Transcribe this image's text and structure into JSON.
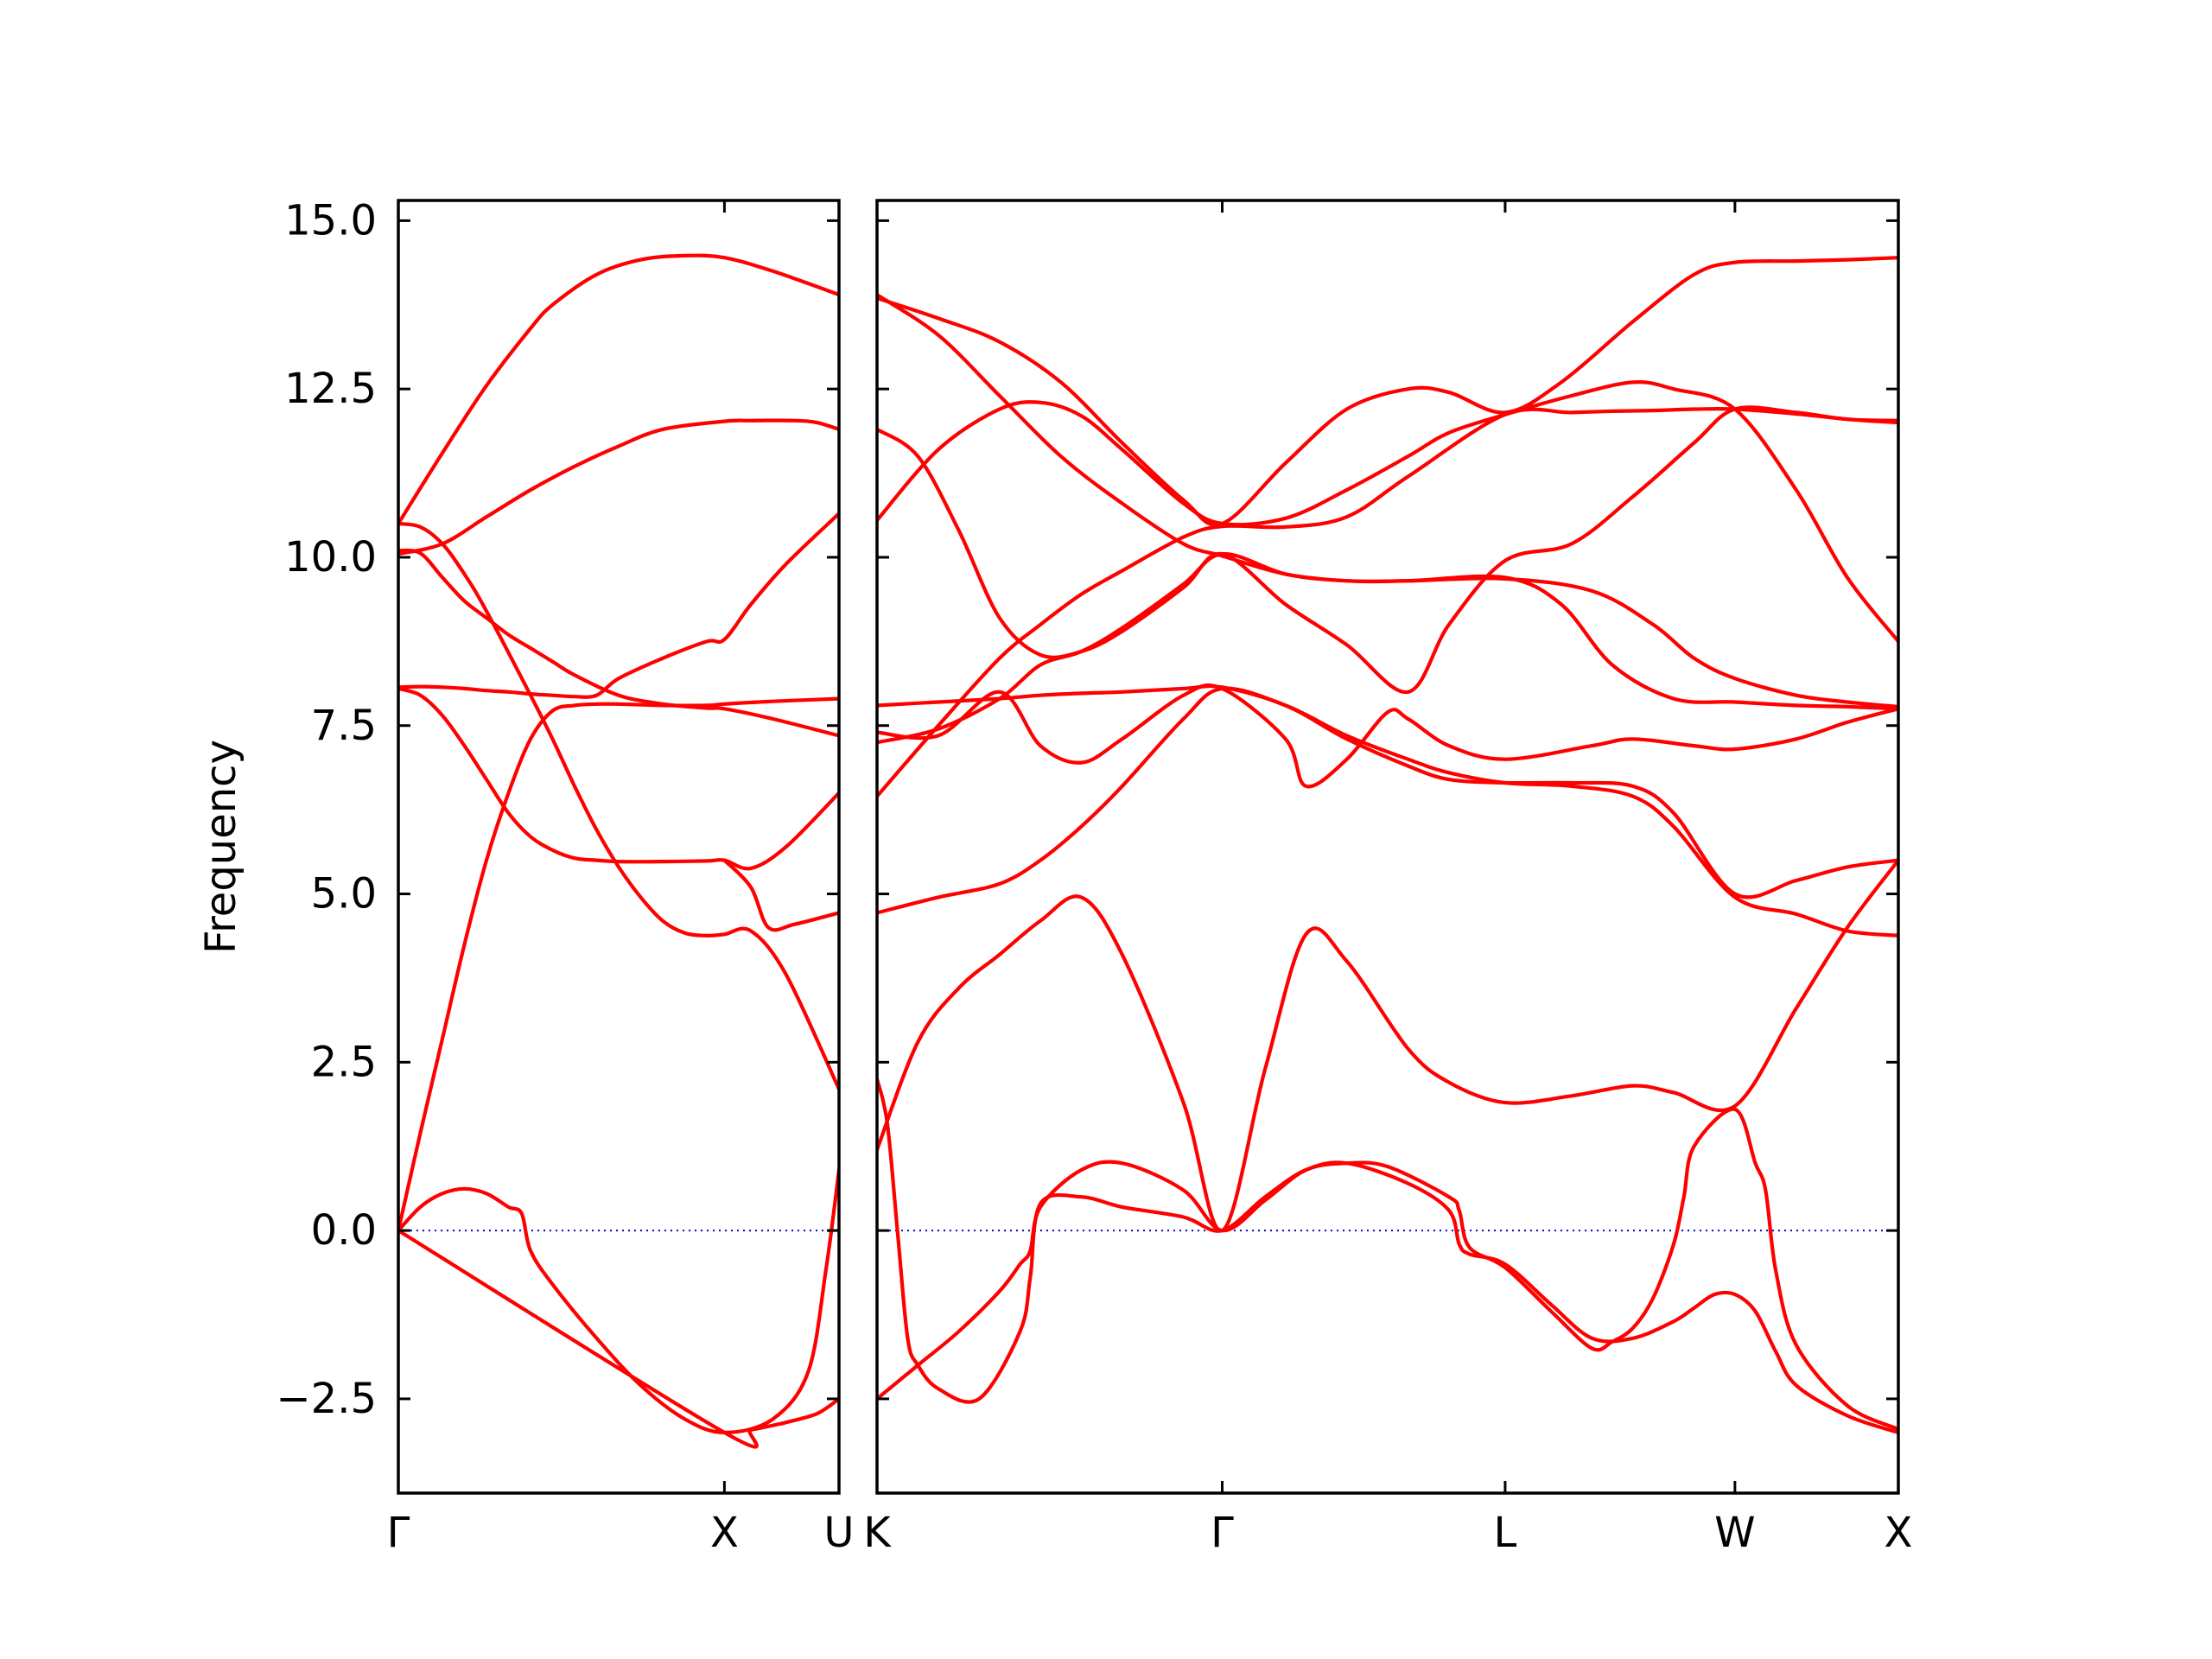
{
  "chart_data": {
    "type": "line",
    "title": "",
    "ylabel": "Frequency",
    "ylim": [
      -3.9,
      15.3
    ],
    "yticks": [
      "−2.5",
      "0.0",
      "2.5",
      "5.0",
      "7.5",
      "10.0",
      "12.5",
      "15.0"
    ],
    "ytick_values": [
      -2.5,
      0.0,
      2.5,
      5.0,
      7.5,
      10.0,
      12.5,
      15.0
    ],
    "colors": {
      "bands": "#ff0000",
      "zero_line": "#0000cc"
    },
    "grid": false,
    "legend": "none",
    "panels": [
      {
        "name": "left-panel",
        "xlim": [
          0,
          1
        ],
        "high_symmetry_points": [
          {
            "label": "Γ",
            "x": 0.0
          },
          {
            "label": "X",
            "x": 0.74
          },
          {
            "label": "U",
            "x": 1.0
          }
        ],
        "series": [
          {
            "x": [
              0,
              0.1,
              0.2,
              0.3,
              0.35,
              0.45,
              0.55,
              0.65,
              0.74,
              0.85,
              1.0
            ],
            "values": [
              10.5,
              11.55,
              12.55,
              13.4,
              13.75,
              14.2,
              14.42,
              14.48,
              14.45,
              14.25,
              13.9
            ]
          },
          {
            "x": [
              0,
              0.1,
              0.2,
              0.3,
              0.4,
              0.5,
              0.6,
              0.74,
              0.8,
              0.9,
              0.95,
              1.0
            ],
            "values": [
              10.05,
              10.2,
              10.6,
              11.0,
              11.35,
              11.65,
              11.9,
              12.02,
              12.03,
              12.03,
              12.0,
              11.9
            ]
          },
          {
            "x": [
              0,
              0.05,
              0.1,
              0.15,
              0.2,
              0.25,
              0.3,
              0.35,
              0.4,
              0.5,
              0.6,
              0.7,
              0.74,
              0.85,
              1.0
            ],
            "values": [
              10.1,
              10.06,
              9.7,
              9.35,
              9.1,
              8.85,
              8.65,
              8.45,
              8.25,
              7.95,
              7.82,
              7.76,
              7.75,
              7.6,
              7.35
            ]
          },
          {
            "x": [
              0,
              0.05,
              0.1,
              0.15,
              0.2,
              0.3,
              0.35,
              0.4,
              0.45,
              0.5,
              0.55,
              0.6,
              0.65,
              0.7,
              0.74,
              0.8,
              0.88,
              1.0
            ],
            "values": [
              10.5,
              10.45,
              10.2,
              9.75,
              9.2,
              7.95,
              7.3,
              6.6,
              5.95,
              5.4,
              4.95,
              4.6,
              4.42,
              4.38,
              4.4,
              4.45,
              3.8,
              2.1
            ]
          },
          {
            "x": [
              0,
              0.05,
              0.1,
              0.15,
              0.2,
              0.25,
              0.3,
              0.35,
              0.4,
              0.45,
              0.5,
              0.6,
              0.7,
              0.74,
              0.8,
              0.88,
              1.0
            ],
            "values": [
              8.07,
              8.08,
              8.07,
              8.05,
              8.02,
              8.0,
              7.97,
              7.95,
              7.93,
              7.95,
              8.2,
              8.5,
              8.75,
              8.78,
              9.3,
              9.9,
              10.65
            ]
          },
          {
            "x": [
              0,
              0.05,
              0.1,
              0.15,
              0.2,
              0.25,
              0.3,
              0.35,
              0.4,
              0.45,
              0.5,
              0.6,
              0.7,
              0.74,
              0.8,
              0.88,
              1.0
            ],
            "values": [
              8.05,
              7.95,
              7.65,
              7.2,
              6.7,
              6.2,
              5.85,
              5.65,
              5.53,
              5.5,
              5.48,
              5.48,
              5.49,
              5.5,
              5.38,
              5.7,
              6.5
            ]
          },
          {
            "x": [
              0,
              0.05,
              0.1,
              0.15,
              0.2,
              0.25,
              0.3,
              0.35,
              0.4,
              0.45,
              0.5,
              0.6,
              0.7,
              0.74,
              0.85,
              1.0
            ],
            "values": [
              0.0,
              1.45,
              2.85,
              4.25,
              5.5,
              6.5,
              7.3,
              7.72,
              7.8,
              7.82,
              7.82,
              7.8,
              7.8,
              7.82,
              7.86,
              7.9
            ]
          },
          {
            "x": [
              0,
              0.05,
              0.1,
              0.15,
              0.2,
              0.25,
              0.28,
              0.3,
              0.35,
              0.45,
              0.55,
              0.65,
              0.74,
              0.85,
              0.93,
              0.97,
              1.0
            ],
            "values": [
              0.0,
              0.35,
              0.55,
              0.62,
              0.55,
              0.35,
              0.25,
              -0.3,
              -0.8,
              -1.6,
              -2.3,
              -2.8,
              -3.0,
              -2.8,
              -2.1,
              -0.6,
              0.9
            ]
          },
          {
            "x": [
              0,
              0.74,
              0.8,
              0.86,
              0.88,
              0.95,
              1.0
            ],
            "values": [
              0.0,
              -3.0,
              -2.96,
              -2.88,
              -2.85,
              -2.72,
              -2.5
            ]
          },
          {
            "x": [
              0.74,
              0.8,
              0.84,
              0.9,
              1.0
            ],
            "values": [
              5.5,
              5.1,
              4.5,
              4.55,
              4.72
            ]
          }
        ]
      },
      {
        "name": "right-panel",
        "xlim": [
          0,
          1
        ],
        "high_symmetry_points": [
          {
            "label": "K",
            "x": 0.0
          },
          {
            "label": "Γ",
            "x": 0.338
          },
          {
            "label": "L",
            "x": 0.615
          },
          {
            "label": "W",
            "x": 0.84
          },
          {
            "label": "X",
            "x": 1.0
          }
        ],
        "series": [
          {
            "x": [
              0,
              0.06,
              0.12,
              0.18,
              0.24,
              0.3,
              0.338,
              0.4,
              0.46,
              0.52,
              0.56,
              0.615,
              0.67,
              0.74,
              0.8,
              0.84,
              0.9,
              0.95,
              1.0
            ],
            "values": [
              13.85,
              13.55,
              13.2,
              12.6,
              11.7,
              10.85,
              10.5,
              11.4,
              12.2,
              12.5,
              12.45,
              12.15,
              12.6,
              13.5,
              14.2,
              14.38,
              14.4,
              14.42,
              14.45
            ]
          },
          {
            "x": [
              0,
              0.06,
              0.12,
              0.18,
              0.24,
              0.3,
              0.338,
              0.4,
              0.46,
              0.52,
              0.615,
              0.7,
              0.76,
              0.8,
              0.84,
              0.9,
              0.95,
              1.0
            ],
            "values": [
              13.9,
              13.3,
              12.4,
              11.5,
              10.8,
              10.2,
              10.02,
              9.75,
              9.65,
              9.65,
              9.68,
              9.5,
              9.0,
              8.5,
              8.2,
              7.95,
              7.85,
              7.78
            ]
          },
          {
            "x": [
              0,
              0.06,
              0.12,
              0.16,
              0.2,
              0.24,
              0.3,
              0.338,
              0.4,
              0.46,
              0.52,
              0.56,
              0.615,
              0.68,
              0.74,
              0.78,
              0.84,
              0.9,
              0.95,
              1.0
            ],
            "values": [
              10.55,
              11.6,
              12.2,
              12.3,
              12.1,
              11.6,
              10.8,
              10.5,
              10.58,
              11.0,
              11.5,
              11.85,
              12.12,
              12.4,
              12.6,
              12.5,
              12.2,
              11.0,
              9.7,
              8.75
            ]
          },
          {
            "x": [
              0,
              0.04,
              0.08,
              0.12,
              0.16,
              0.2,
              0.24,
              0.3,
              0.338,
              0.4,
              0.46,
              0.52,
              0.56,
              0.615,
              0.68,
              0.74,
              0.8,
              0.84,
              0.9,
              0.95,
              1.0
            ],
            "values": [
              11.9,
              11.5,
              10.4,
              9.1,
              8.55,
              8.6,
              8.9,
              9.55,
              10.05,
              9.3,
              8.7,
              8.0,
              9.0,
              9.95,
              10.2,
              10.9,
              11.7,
              12.2,
              12.15,
              12.05,
              12.03
            ]
          },
          {
            "x": [
              0,
              0.06,
              0.12,
              0.16,
              0.2,
              0.24,
              0.3,
              0.338,
              0.4,
              0.46,
              0.52,
              0.615,
              0.68,
              0.72,
              0.76,
              0.8,
              0.84,
              0.9,
              0.95,
              1.0
            ],
            "values": [
              6.45,
              7.5,
              8.5,
              9.0,
              9.45,
              9.8,
              10.3,
              10.46,
              10.45,
              10.6,
              11.2,
              12.12,
              12.15,
              12.17,
              12.18,
              12.2,
              12.2,
              12.13,
              12.05,
              12.0
            ]
          },
          {
            "x": [
              0,
              0.06,
              0.12,
              0.16,
              0.2,
              0.24,
              0.3,
              0.338,
              0.4,
              0.46,
              0.52,
              0.615,
              0.67,
              0.72,
              0.78,
              0.84,
              0.9,
              0.95,
              1.0
            ],
            "values": [
              7.25,
              7.45,
              7.9,
              8.4,
              8.6,
              8.95,
              9.6,
              10.05,
              9.75,
              9.65,
              9.65,
              9.7,
              9.3,
              8.4,
              7.9,
              7.85,
              7.8,
              7.78,
              7.75
            ]
          },
          {
            "x": [
              0,
              0.06,
              0.12,
              0.16,
              0.2,
              0.24,
              0.3,
              0.338,
              0.4,
              0.46,
              0.52,
              0.56,
              0.615,
              0.68,
              0.74,
              0.78,
              0.84,
              0.9,
              0.95,
              1.0
            ],
            "values": [
              7.8,
              7.85,
              7.9,
              7.95,
              7.98,
              8.0,
              8.05,
              8.07,
              7.8,
              7.3,
              6.9,
              6.7,
              6.65,
              6.65,
              6.6,
              6.2,
              5.0,
              5.2,
              5.4,
              5.5
            ]
          },
          {
            "x": [
              0,
              0.06,
              0.12,
              0.16,
              0.2,
              0.24,
              0.3,
              0.338,
              0.4,
              0.42,
              0.46,
              0.5,
              0.52,
              0.56,
              0.615,
              0.7,
              0.74,
              0.8,
              0.84,
              0.9,
              0.95,
              1.0
            ],
            "values": [
              7.4,
              7.35,
              8.0,
              7.2,
              6.95,
              7.3,
              7.95,
              8.05,
              7.3,
              6.6,
              7.0,
              7.7,
              7.6,
              7.2,
              7.0,
              7.2,
              7.3,
              7.2,
              7.15,
              7.3,
              7.55,
              7.75
            ]
          },
          {
            "x": [
              0,
              0.06,
              0.12,
              0.16,
              0.2,
              0.24,
              0.3,
              0.338,
              0.4,
              0.46,
              0.52,
              0.56,
              0.615,
              0.68,
              0.74,
              0.78,
              0.84,
              0.9,
              0.95,
              1.0
            ],
            "values": [
              4.72,
              4.95,
              5.15,
              5.5,
              6.0,
              6.6,
              7.6,
              8.05,
              7.8,
              7.35,
              7.0,
              6.8,
              6.65,
              6.6,
              6.45,
              6.0,
              4.95,
              4.7,
              4.45,
              4.38
            ]
          },
          {
            "x": [
              0,
              0.04,
              0.08,
              0.12,
              0.16,
              0.2,
              0.24,
              0.3,
              0.338,
              0.38,
              0.42,
              0.46,
              0.52,
              0.56,
              0.615,
              0.68,
              0.74,
              0.78,
              0.84,
              0.9,
              0.95,
              1.0
            ],
            "values": [
              1.2,
              2.8,
              3.6,
              4.1,
              4.6,
              4.95,
              4.1,
              1.9,
              0.0,
              2.4,
              4.4,
              4.0,
              2.7,
              2.2,
              1.9,
              2.0,
              2.15,
              2.05,
              1.85,
              3.3,
              4.5,
              5.5
            ]
          },
          {
            "x": [
              0,
              0.01,
              0.02,
              0.03,
              0.04,
              0.06,
              0.1,
              0.14,
              0.15,
              0.16,
              0.2,
              0.24,
              0.3,
              0.338,
              0.38,
              0.42,
              0.46,
              0.52,
              0.56,
              0.57,
              0.58,
              0.615,
              0.66,
              0.7,
              0.74,
              0.78,
              0.8,
              0.82,
              0.84,
              0.86,
              0.88,
              0.9,
              0.95,
              1.0
            ],
            "values": [
              2.25,
              1.6,
              0.0,
              -1.6,
              -2.0,
              -2.35,
              -2.5,
              -1.5,
              -0.7,
              0.4,
              0.5,
              0.35,
              0.2,
              0.0,
              0.5,
              0.9,
              1.0,
              0.7,
              0.3,
              -0.2,
              -0.35,
              -0.5,
              -1.1,
              -1.6,
              -1.6,
              -1.35,
              -1.15,
              -0.95,
              -0.95,
              -1.2,
              -1.8,
              -2.3,
              -2.75,
              -3.0
            ]
          },
          {
            "x": [
              0,
              0.04,
              0.08,
              0.12,
              0.14,
              0.15,
              0.16,
              0.2,
              0.24,
              0.3,
              0.338,
              0.38,
              0.42,
              0.46,
              0.5,
              0.56,
              0.57,
              0.58,
              0.615,
              0.66,
              0.7,
              0.72,
              0.74,
              0.76,
              0.78,
              0.79,
              0.8,
              0.84,
              0.86,
              0.87,
              0.88,
              0.9,
              0.95,
              1.0
            ],
            "values": [
              -2.5,
              -2.0,
              -1.5,
              -0.9,
              -0.5,
              -0.3,
              0.35,
              0.9,
              1.0,
              0.6,
              0.0,
              0.45,
              0.9,
              1.0,
              0.95,
              0.5,
              0.3,
              -0.25,
              -0.55,
              -1.2,
              -1.75,
              -1.65,
              -1.45,
              -1.0,
              -0.2,
              0.5,
              1.25,
              1.8,
              1.0,
              0.6,
              -0.6,
              -1.7,
              -2.6,
              -2.95
            ]
          }
        ]
      }
    ]
  }
}
